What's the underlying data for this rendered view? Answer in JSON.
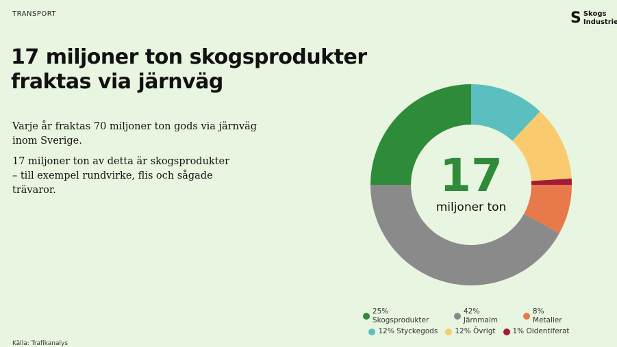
{
  "header": {
    "kicker": "TRANSPORT",
    "logo_line1": "Skogs",
    "logo_line2": "Industrierna"
  },
  "title_line1": "17 miljoner ton skogsprodukter",
  "title_line2": "fraktas via järnväg",
  "body": {
    "p1_line1": "Varje år fraktas 70 miljoner ton gods via järnväg",
    "p1_line2": "inom Sverige.",
    "p2_line1": "17 miljoner ton av detta är skogsprodukter",
    "p2_line2": "– till exempel rundvirke, flis och sågade trävaror."
  },
  "source": "Källa: Trafikanalys",
  "chart_data": {
    "type": "pie",
    "variant": "donut",
    "center_value": "17",
    "center_label": "miljoner ton",
    "unit": "%",
    "legend_position": "bottom",
    "slices": [
      {
        "name": "Styckegods",
        "value": 12,
        "label": "12% Styckegods",
        "color": "#5bbfc0"
      },
      {
        "name": "Övrigt",
        "value": 12,
        "label": "12% Övrigt",
        "color": "#f9cb6e"
      },
      {
        "name": "Oidentiferat",
        "value": 1,
        "label": "1% Oidentiferat",
        "color": "#a3193a"
      },
      {
        "name": "Metaller",
        "value": 8,
        "label": "8% Metaller",
        "color": "#e8794a"
      },
      {
        "name": "Järnmalm",
        "value": 42,
        "label": "42% Järnmalm",
        "color": "#8a8a8a"
      },
      {
        "name": "Skogsprodukter",
        "value": 25,
        "label": "25% Skogsprodukter",
        "color": "#2e8b3a"
      }
    ],
    "legend_order": [
      [
        5,
        4,
        3
      ],
      [
        0,
        1,
        2
      ]
    ]
  }
}
